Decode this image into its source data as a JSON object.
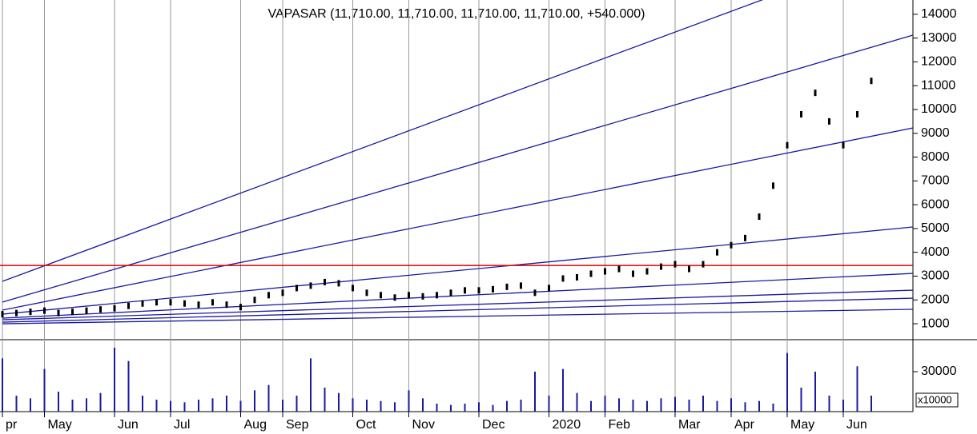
{
  "chart_data": [
    {
      "type": "scatter",
      "title": "VAPASAR (11,710.00, 11,710.00, 11,710.00, 11,710.00, +540.000)",
      "color": "#000000",
      "values": [
        1400,
        1450,
        1500,
        1550,
        1450,
        1500,
        1550,
        1600,
        1650,
        1750,
        1850,
        1900,
        1900,
        1850,
        1800,
        1900,
        1800,
        1700,
        2000,
        2200,
        2300,
        2500,
        2600,
        2750,
        2700,
        2500,
        2300,
        2200,
        2100,
        2200,
        2150,
        2200,
        2300,
        2400,
        2400,
        2450,
        2550,
        2600,
        2300,
        2500,
        2900,
        2950,
        3100,
        3200,
        3300,
        3100,
        3200,
        3400,
        3500,
        3300,
        3500,
        4000,
        4300,
        4600,
        5500,
        6800,
        8500,
        9800,
        10700,
        9500,
        8500,
        9800,
        11200
      ],
      "ylim": [
        330,
        14600
      ],
      "yticks": [
        1000,
        2000,
        3000,
        4000,
        5000,
        6000,
        7000,
        8000,
        9000,
        10000,
        11000,
        12000,
        13000,
        14000
      ],
      "fan_color": "#1a1aa0",
      "fan_lines": [
        {
          "x": [
            0,
            65
          ],
          "values": [
            2780,
            16960
          ]
        },
        {
          "x": [
            0,
            65
          ],
          "values": [
            1907,
            13130
          ]
        },
        {
          "x": [
            0,
            65
          ],
          "values": [
            1571,
            9230
          ]
        },
        {
          "x": [
            0,
            65
          ],
          "values": [
            1403,
            5065
          ]
        },
        {
          "x": [
            0,
            65
          ],
          "values": [
            1235,
            3116
          ]
        },
        {
          "x": [
            0,
            65
          ],
          "values": [
            1168,
            2411
          ]
        },
        {
          "x": [
            0,
            65
          ],
          "values": [
            1067,
            2075
          ]
        },
        {
          "x": [
            0,
            65
          ],
          "values": [
            1000,
            1605
          ]
        }
      ],
      "hline": 3450,
      "hline_color": "#e00000"
    },
    {
      "type": "bar",
      "color": "#1a1aa0",
      "unit_label": "x10000",
      "categories": [
        "pr",
        null,
        null,
        "May",
        null,
        null,
        null,
        null,
        "Jun",
        null,
        null,
        null,
        "Jul",
        null,
        null,
        null,
        null,
        "Aug",
        null,
        null,
        "Sep",
        null,
        null,
        null,
        null,
        "Oct",
        null,
        null,
        null,
        "Nov",
        null,
        null,
        null,
        null,
        "Dec",
        null,
        null,
        null,
        null,
        "2020",
        null,
        null,
        null,
        "Feb",
        null,
        null,
        null,
        null,
        "Mar",
        null,
        null,
        null,
        "Apr",
        null,
        null,
        null,
        "May",
        null,
        null,
        null,
        "Jun",
        null,
        null
      ],
      "values": [
        40000,
        12000,
        10000,
        32000,
        15000,
        9000,
        10000,
        14000,
        48000,
        38000,
        12000,
        9000,
        8000,
        7000,
        9000,
        10000,
        12000,
        8000,
        16000,
        20000,
        9000,
        12000,
        40000,
        18000,
        14000,
        10000,
        9000,
        8000,
        7000,
        16000,
        10000,
        6000,
        5000,
        6000,
        7000,
        5000,
        8000,
        9000,
        30000,
        12000,
        32000,
        14000,
        8000,
        12000,
        10000,
        9000,
        8000,
        10000,
        11000,
        9000,
        12000,
        8000,
        10000,
        7000,
        8000,
        6000,
        44000,
        18000,
        30000,
        12000,
        9000,
        34000,
        12000
      ],
      "ylim": [
        0,
        54000
      ],
      "yticks": [
        30000
      ]
    }
  ]
}
